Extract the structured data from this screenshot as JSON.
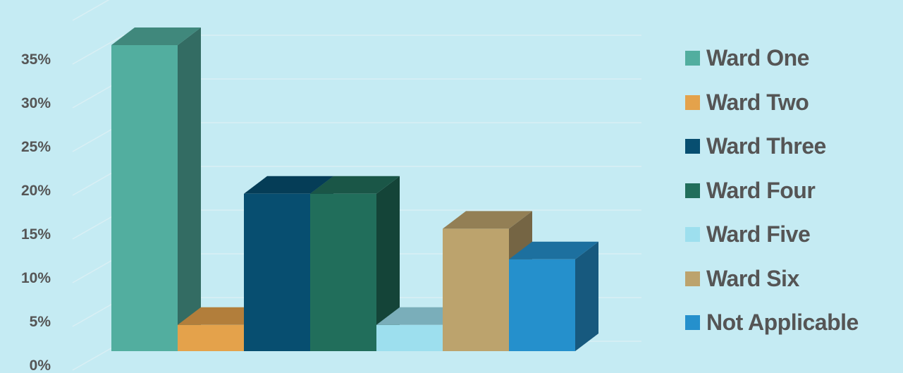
{
  "chart_data": {
    "type": "bar",
    "title": "",
    "xlabel": "",
    "ylabel": "",
    "ylim": [
      0,
      0.35
    ],
    "y_ticks": [
      {
        "value": 0,
        "label": "0%"
      },
      {
        "value": 0.05,
        "label": "5%"
      },
      {
        "value": 0.1,
        "label": "10%"
      },
      {
        "value": 0.15,
        "label": "15%"
      },
      {
        "value": 0.2,
        "label": "20%"
      },
      {
        "value": 0.25,
        "label": "25%"
      },
      {
        "value": 0.3,
        "label": "30%"
      },
      {
        "value": 0.35,
        "label": "35%"
      }
    ],
    "grid": true,
    "legend_position": "right",
    "series": [
      {
        "name": "Ward One",
        "value": 0.35,
        "color": "#52ae9f"
      },
      {
        "name": "Ward Two",
        "value": 0.03,
        "color": "#e4a24b"
      },
      {
        "name": "Ward Three",
        "value": 0.18,
        "color": "#074e70"
      },
      {
        "name": "Ward Four",
        "value": 0.18,
        "color": "#216e5b"
      },
      {
        "name": "Ward Five",
        "value": 0.03,
        "color": "#9ddfee"
      },
      {
        "name": "Ward Six",
        "value": 0.14,
        "color": "#bca36d"
      },
      {
        "name": "Not Applicable",
        "value": 0.105,
        "color": "#2590cc"
      }
    ]
  }
}
